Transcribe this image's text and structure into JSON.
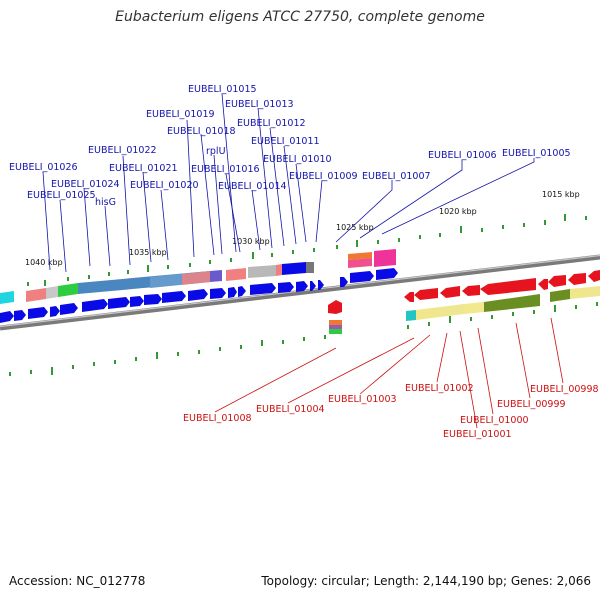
{
  "title": "Eubacterium eligens ATCC 27750, complete genome",
  "footer": {
    "accession": "Accession: NC_012778",
    "summary": "Topology: circular; Length: 2,144,190 bp; Genes: 2,066"
  },
  "colors": {
    "backbone": "#7a7a7a",
    "gene_arrow": "#0a0ae6",
    "reverse_gene": "#e6141e",
    "top_label": "#1414aa",
    "bottom_label": "#cc1111",
    "tick": "#1e8c1e"
  },
  "kbp_labels": [
    "1040 kbp",
    "1035 kbp",
    "1030 kbp",
    "1025 kbp",
    "1020 kbp",
    "1015 kbp"
  ],
  "top_genes": [
    "EUBELI_01026",
    "EUBELI_01025",
    "EUBELI_01024",
    "hisG",
    "EUBELI_01022",
    "EUBELI_01021",
    "EUBELI_01020",
    "EUBELI_01019",
    "EUBELI_01018",
    "rplU",
    "EUBELI_01016",
    "EUBELI_01015",
    "EUBELI_01014",
    "EUBELI_01013",
    "EUBELI_01012",
    "EUBELI_01011",
    "EUBELI_01010",
    "EUBELI_01009",
    "EUBELI_01007",
    "EUBELI_01006",
    "EUBELI_01005"
  ],
  "bottom_genes": [
    "EUBELI_01008",
    "EUBELI_01004",
    "EUBELI_01003",
    "EUBELI_01002",
    "EUBELI_01001",
    "EUBELI_01000",
    "EUBELI_00999",
    "EUBELI_00998"
  ]
}
